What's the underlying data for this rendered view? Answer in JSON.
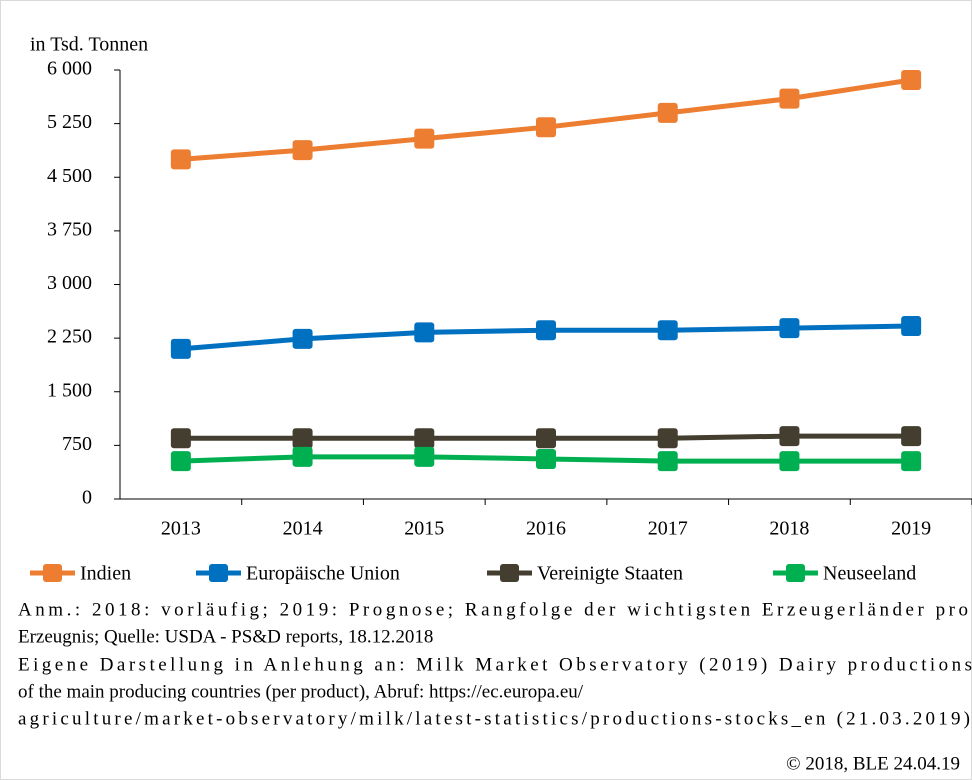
{
  "chart_data": {
    "type": "line",
    "y_label": "in Tsd. Tonnen",
    "categories": [
      "2013",
      "2014",
      "2015",
      "2016",
      "2017",
      "2018",
      "2019"
    ],
    "series": [
      {
        "name": "Indien",
        "color": "#ed7d31",
        "values": [
          4750,
          4880,
          5040,
          5200,
          5400,
          5600,
          5860
        ]
      },
      {
        "name": "Europäische Union",
        "color": "#0070c0",
        "values": [
          2100,
          2240,
          2330,
          2360,
          2360,
          2390,
          2420
        ]
      },
      {
        "name": "Vereinigte Staaten",
        "color": "#433e2f",
        "values": [
          850,
          850,
          850,
          850,
          850,
          880,
          880
        ]
      },
      {
        "name": "Neuseeland",
        "color": "#00b050",
        "values": [
          530,
          590,
          590,
          560,
          530,
          530,
          530
        ]
      }
    ],
    "ylim": [
      0,
      6000
    ],
    "yticks": [
      0,
      750,
      {
        "value": 1500,
        "label": "1 500"
      },
      {
        "value": 2250,
        "label": "2 250"
      },
      {
        "value": 3000,
        "label": "3 000"
      },
      {
        "value": 3750,
        "label": "3 750"
      },
      {
        "value": 4500,
        "label": "4 500"
      },
      {
        "value": 5250,
        "label": "5 250"
      },
      {
        "value": 6000,
        "label": "6 000"
      }
    ],
    "notes": [
      "Anm.: 2018: vorläufig; 2019: Prognose; Rangfolge der wichtigsten Erzeugerländer pro",
      "Erzeugnis; Quelle: USDA - PS&D reports, 18.12.2018",
      "Eigene Darstellung in Anlehung an: Milk Market Observatory (2019) Dairy productions",
      "of the main producing countries (per product), Abruf: https://ec.europa.eu/",
      "agriculture/market-observatory/milk/latest-statistics/productions-stocks_en (21.03.2019)"
    ],
    "copyright": "© 2018, BLE 24.04.19"
  }
}
